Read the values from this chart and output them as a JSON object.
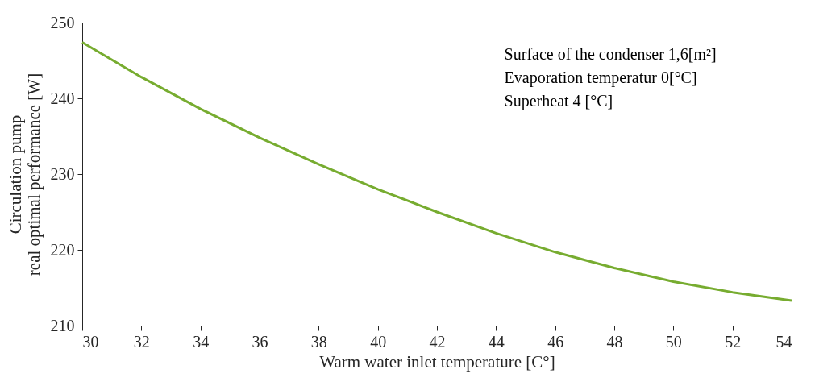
{
  "chart_data": {
    "type": "line",
    "xlabel": "Warm water inlet temperature [C°]",
    "ylabel": "Circulation pump real optimal performance [W]",
    "x": [
      30,
      32,
      34,
      36,
      38,
      40,
      42,
      44,
      46,
      48,
      50,
      52,
      54
    ],
    "series": [
      {
        "color": "#77ac30",
        "values": [
          247.4,
          242.8,
          238.6,
          234.8,
          231.3,
          228.0,
          225.0,
          222.2,
          219.7,
          217.6,
          215.8,
          214.4,
          213.3
        ]
      }
    ],
    "xlim": [
      30,
      54
    ],
    "xticks": [
      30,
      32,
      34,
      36,
      38,
      40,
      42,
      44,
      46,
      48,
      50,
      52,
      54
    ],
    "ylim": [
      210,
      250
    ],
    "yticks": [
      210,
      220,
      230,
      240,
      250
    ],
    "annotations": [
      "Surface of the condenser 1,6[m²]",
      "Evaporation temperatur 0[°C]",
      "Superheat 4 [°C]"
    ],
    "grid": false,
    "marker": "none",
    "line_style": "solid"
  }
}
